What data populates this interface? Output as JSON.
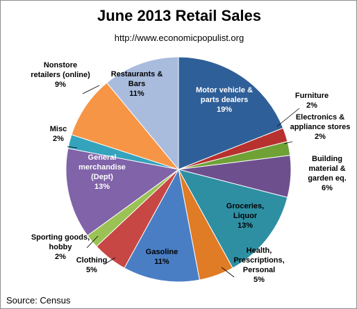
{
  "chart_data": {
    "type": "pie",
    "title": "June 2013 Retail Sales",
    "subtitle": "http://www.economicpopulist.org",
    "source": "Source:  Census",
    "slices": [
      {
        "name": "Motor vehicle & parts dealers",
        "lines": [
          "Motor vehicle &",
          "parts dealers",
          "19%"
        ],
        "value": 19,
        "color": "#2f5f98"
      },
      {
        "name": "Furniture",
        "lines": [
          "Furniture",
          "2%"
        ],
        "value": 2,
        "color": "#b7312f"
      },
      {
        "name": "Electronics & appliance stores",
        "lines": [
          "Electronics &",
          "appliance stores",
          "2%"
        ],
        "value": 2,
        "color": "#6fa135"
      },
      {
        "name": "Building material & garden eq.",
        "lines": [
          "Building",
          "material &",
          "garden eq.",
          "6%"
        ],
        "value": 6,
        "color": "#6e4f8e"
      },
      {
        "name": "Groceries, Liquor",
        "lines": [
          "Groceries,",
          "Liquor",
          "13%"
        ],
        "value": 13,
        "color": "#2e8fa3"
      },
      {
        "name": "Health, Prescriptions, Personal",
        "lines": [
          "Health,",
          "Prescriptions,",
          "Personal",
          "5%"
        ],
        "value": 5,
        "color": "#e07b26"
      },
      {
        "name": "Gasoline",
        "lines": [
          "Gasoline",
          "11%"
        ],
        "value": 11,
        "color": "#4a7ec4"
      },
      {
        "name": "Clothing",
        "lines": [
          "Clothing",
          "5%"
        ],
        "value": 5,
        "color": "#c64744"
      },
      {
        "name": "Sporting goods, hobby",
        "lines": [
          "Sporting goods,",
          "hobby",
          "2%"
        ],
        "value": 2,
        "color": "#9bc254"
      },
      {
        "name": "General merchandise (Dept)",
        "lines": [
          "General",
          "merchandise",
          "(Dept)",
          "13%"
        ],
        "value": 13,
        "color": "#8063a8"
      },
      {
        "name": "Misc",
        "lines": [
          "Misc",
          "2%"
        ],
        "value": 2,
        "color": "#36a3bd"
      },
      {
        "name": "Nonstore retailers (online)",
        "lines": [
          "Nonstore",
          "retailers (online)",
          "9%"
        ],
        "value": 9,
        "color": "#f79546"
      },
      {
        "name": "Restaurants & Bars",
        "lines": [
          "Restaurants &",
          "Bars",
          "11%"
        ],
        "value": 11,
        "color": "#a9bcdd"
      }
    ]
  }
}
